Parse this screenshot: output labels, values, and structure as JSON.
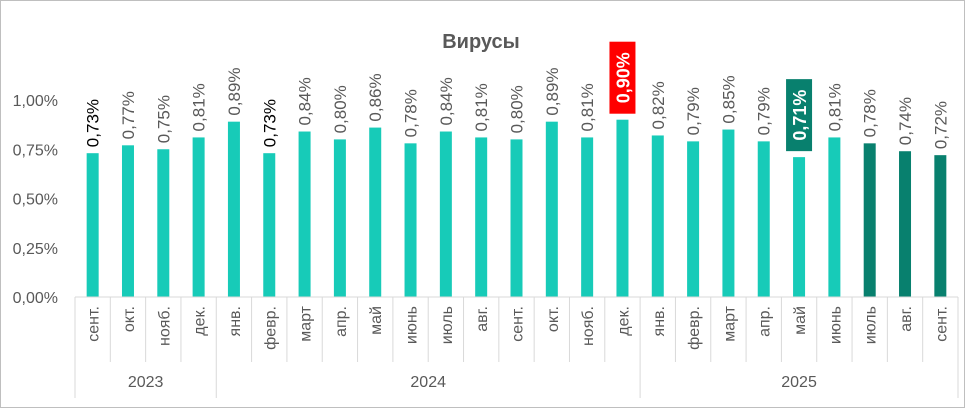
{
  "chart_data": {
    "type": "bar",
    "title": "Вирусы",
    "xlabel": "",
    "ylabel": "",
    "ylim": [
      0,
      0.01
    ],
    "yticks": [
      "0,00%",
      "0,25%",
      "0,50%",
      "0,75%",
      "1,00%"
    ],
    "ytick_values": [
      0,
      0.0025,
      0.005,
      0.0075,
      0.01
    ],
    "grid": false,
    "legend": "none",
    "colors": {
      "default": "#17CBB8",
      "recent": "#08806E",
      "max_badge": "#FF0000",
      "min_badge": "#08806E",
      "text": "#595959",
      "axis": "#D9D9D9",
      "frame": "#BFBFBF"
    },
    "categories": [
      "сент.",
      "окт.",
      "нояб.",
      "дек.",
      "янв.",
      "февр.",
      "март",
      "апр.",
      "май",
      "июнь",
      "июль",
      "авг.",
      "сент.",
      "окт.",
      "нояб.",
      "дек.",
      "янв.",
      "февр.",
      "март",
      "апр.",
      "май",
      "июнь",
      "июль",
      "авг.",
      "сент."
    ],
    "values": [
      0.0073,
      0.0077,
      0.0075,
      0.0081,
      0.0089,
      0.0073,
      0.0084,
      0.008,
      0.0086,
      0.0078,
      0.0084,
      0.0081,
      0.008,
      0.0089,
      0.0081,
      0.009,
      0.0082,
      0.0079,
      0.0085,
      0.0079,
      0.0071,
      0.0081,
      0.0078,
      0.0074,
      0.0072
    ],
    "labels": [
      "0,73%",
      "0,77%",
      "0,75%",
      "0,81%",
      "0,89%",
      "0,73%",
      "0,84%",
      "0,80%",
      "0,86%",
      "0,78%",
      "0,84%",
      "0,81%",
      "0,80%",
      "0,89%",
      "0,81%",
      "0,90%",
      "0,82%",
      "0,79%",
      "0,85%",
      "0,79%",
      "0,71%",
      "0,81%",
      "0,78%",
      "0,74%",
      "0,72%"
    ],
    "bar_color_keys": [
      "default",
      "default",
      "default",
      "default",
      "default",
      "default",
      "default",
      "default",
      "default",
      "default",
      "default",
      "default",
      "default",
      "default",
      "default",
      "default",
      "default",
      "default",
      "default",
      "default",
      "default",
      "default",
      "recent",
      "recent",
      "recent"
    ],
    "highlights": {
      "max_index": 15,
      "min_index": 20
    },
    "year_groups": [
      {
        "label": "2023",
        "start": 0,
        "end": 3
      },
      {
        "label": "2024",
        "start": 4,
        "end": 15
      },
      {
        "label": "2025",
        "start": 16,
        "end": 24
      }
    ]
  }
}
